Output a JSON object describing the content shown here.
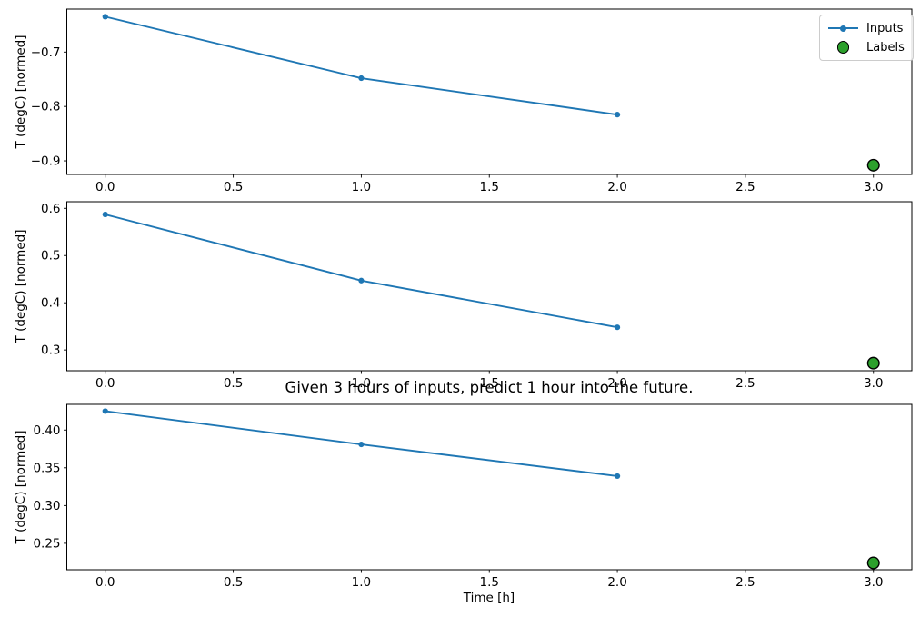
{
  "figure": {
    "title": "Given 3 hours of inputs, predict 1 hour into the future.",
    "xlabel": "Time [h]",
    "legend": {
      "position": "upper right",
      "items": [
        {
          "label": "Inputs",
          "marker": "line-with-dot"
        },
        {
          "label": "Labels",
          "marker": "filled-circle"
        }
      ]
    },
    "colors": {
      "inputs": "#1f77b4",
      "labels_fill": "#2ca02c",
      "labels_edge": "#000000",
      "axis": "#000000",
      "legend_border": "#cccccc"
    }
  },
  "chart_data": [
    {
      "type": "line",
      "ylabel": "T (degC) [normed]",
      "series": [
        {
          "name": "Inputs",
          "style": "line",
          "x": [
            0,
            1,
            2
          ],
          "values": [
            -0.635,
            -0.748,
            -0.815
          ]
        },
        {
          "name": "Labels",
          "style": "scatter",
          "x": [
            3
          ],
          "values": [
            -0.908
          ]
        }
      ],
      "xticks": [
        0.0,
        0.5,
        1.0,
        1.5,
        2.0,
        2.5,
        3.0
      ],
      "xtick_labels": [
        "0.0",
        "0.5",
        "1.0",
        "1.5",
        "2.0",
        "2.5",
        "3.0"
      ],
      "yticks": [
        -0.9,
        -0.8,
        -0.7
      ],
      "ytick_labels": [
        "−0.9",
        "−0.8",
        "−0.7"
      ],
      "xlim": [
        -0.15,
        3.15
      ],
      "ylim": [
        -0.925,
        -0.621
      ],
      "grid": false
    },
    {
      "type": "line",
      "ylabel": "T (degC) [normed]",
      "series": [
        {
          "name": "Inputs",
          "style": "line",
          "x": [
            0,
            1,
            2
          ],
          "values": [
            0.587,
            0.447,
            0.348
          ]
        },
        {
          "name": "Labels",
          "style": "scatter",
          "x": [
            3
          ],
          "values": [
            0.272
          ]
        }
      ],
      "xticks": [
        0.0,
        0.5,
        1.0,
        1.5,
        2.0,
        2.5,
        3.0
      ],
      "xtick_labels": [
        "0.0",
        "0.5",
        "1.0",
        "1.5",
        "2.0",
        "2.5",
        "3.0"
      ],
      "yticks": [
        0.3,
        0.4,
        0.5,
        0.6
      ],
      "ytick_labels": [
        "0.3",
        "0.4",
        "0.5",
        "0.6"
      ],
      "xlim": [
        -0.15,
        3.15
      ],
      "ylim": [
        0.256,
        0.614
      ],
      "grid": false
    },
    {
      "type": "line",
      "ylabel": "T (degC) [normed]",
      "series": [
        {
          "name": "Inputs",
          "style": "line",
          "x": [
            0,
            1,
            2
          ],
          "values": [
            0.425,
            0.381,
            0.339
          ]
        },
        {
          "name": "Labels",
          "style": "scatter",
          "x": [
            3
          ],
          "values": [
            0.224
          ]
        }
      ],
      "xticks": [
        0.0,
        0.5,
        1.0,
        1.5,
        2.0,
        2.5,
        3.0
      ],
      "xtick_labels": [
        "0.0",
        "0.5",
        "1.0",
        "1.5",
        "2.0",
        "2.5",
        "3.0"
      ],
      "yticks": [
        0.25,
        0.3,
        0.35,
        0.4
      ],
      "ytick_labels": [
        "0.25",
        "0.30",
        "0.35",
        "0.40"
      ],
      "xlim": [
        -0.15,
        3.15
      ],
      "ylim": [
        0.215,
        0.434
      ],
      "grid": false
    }
  ]
}
